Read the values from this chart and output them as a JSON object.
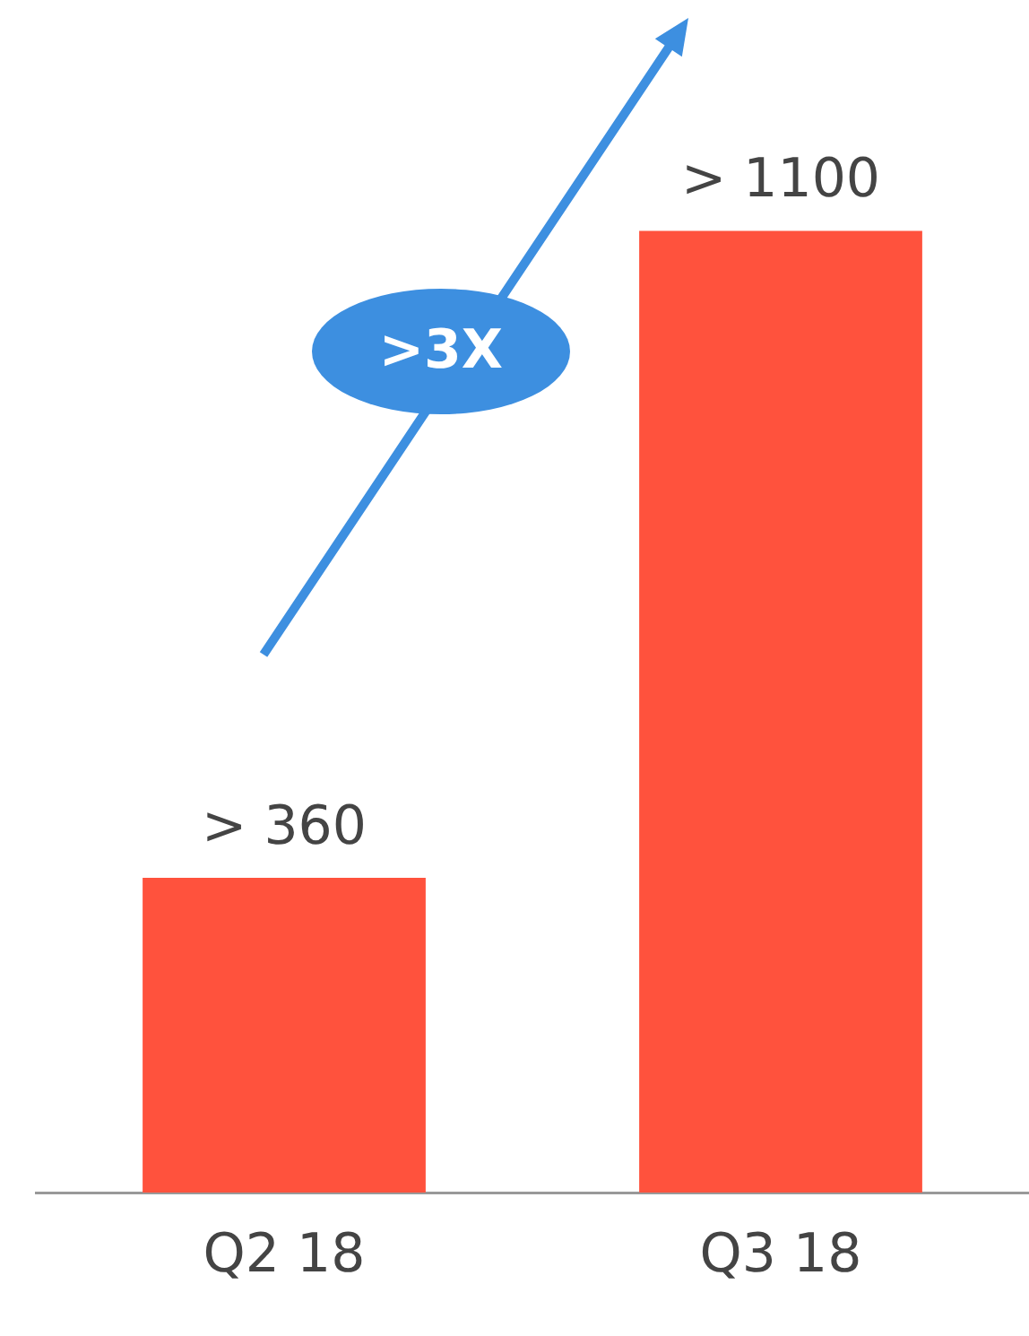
{
  "chart_data": {
    "type": "bar",
    "categories": [
      "Q2 18",
      "Q3 18"
    ],
    "values": [
      360,
      1100
    ],
    "color": "#ff523d",
    "value_labels": [
      "> 360",
      "> 1100"
    ],
    "annotations": [
      ">3X"
    ]
  }
}
